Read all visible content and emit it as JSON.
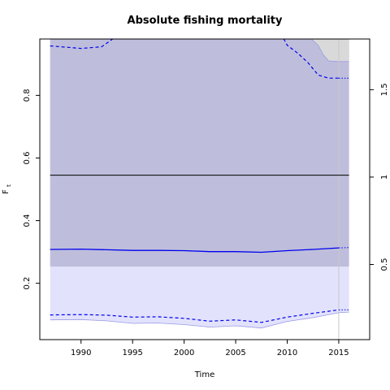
{
  "chart_data": {
    "type": "area",
    "title": "Absolute fishing mortality",
    "xlabel": "Time",
    "ylabel": "F",
    "ylabel_sub": "t",
    "xlim": [
      1986,
      2018
    ],
    "ylim": [
      0.02,
      0.98
    ],
    "y2lim": [
      0.07,
      1.79
    ],
    "x_ticks": [
      1990,
      1995,
      2000,
      2005,
      2010,
      2015
    ],
    "y_ticks": [
      0.2,
      0.4,
      0.6,
      0.8
    ],
    "y_tick_labels": [
      "0.2",
      "0.4",
      "0.6",
      "0.8"
    ],
    "y2_ticks": [
      0.5,
      1.0,
      1.5
    ],
    "y2_tick_labels": [
      "0.5",
      "1",
      "1.5"
    ],
    "grid": false,
    "colors": {
      "fmsy_band": "#bebedc",
      "ci_band": "#e2e2fd",
      "prediction_band": "#d9d9d9",
      "estimate_line": "#0000ee",
      "ci_line": "#0000ee",
      "ci_band_edge": "#9a9ae6",
      "reference_line": "#000000",
      "vline": "#c8c8c8"
    },
    "reference_line_y": 0.545,
    "fmsy_band": {
      "lower": 0.253,
      "upper": 0.98
    },
    "prediction_start": 2015,
    "vline_x": 2015,
    "estimate": {
      "x": [
        1987,
        1990,
        1992.5,
        1995,
        1997.5,
        2000,
        2002.5,
        2005,
        2007.5,
        2010,
        2012.5,
        2015
      ],
      "y": [
        0.308,
        0.309,
        0.307,
        0.305,
        0.305,
        0.304,
        0.301,
        0.301,
        0.299,
        0.304,
        0.308,
        0.313
      ]
    },
    "estimate_pred": {
      "x": [
        2015,
        2016
      ],
      "y": [
        0.313,
        0.314
      ]
    },
    "ci_lower": {
      "x": [
        1987,
        1990,
        1992.5,
        1995,
        1997.5,
        2000,
        2002.5,
        2005,
        2007.5,
        2010,
        2012.5,
        2015
      ],
      "y": [
        0.099,
        0.1,
        0.098,
        0.092,
        0.093,
        0.088,
        0.079,
        0.083,
        0.075,
        0.092,
        0.104,
        0.115
      ]
    },
    "ci_lower_pred": {
      "x": [
        2015,
        2016
      ],
      "y": [
        0.115,
        0.115
      ]
    },
    "ci_upper": {
      "x": [
        1987,
        1990,
        1992,
        1993.5,
        2009.5,
        2010,
        2011,
        2012,
        2013,
        2014,
        2015
      ],
      "y": [
        0.958,
        0.95,
        0.955,
        0.99,
        0.99,
        0.96,
        0.935,
        0.905,
        0.865,
        0.855,
        0.855
      ]
    },
    "ci_upper_pred": {
      "x": [
        2015,
        2016
      ],
      "y": [
        0.855,
        0.855
      ]
    },
    "band_lower_edge": {
      "x": [
        1987,
        1990,
        1992.5,
        1995,
        1997.5,
        2000,
        2002.5,
        2005,
        2007.5,
        2010,
        2012.5,
        2015,
        2016
      ],
      "y": [
        0.083,
        0.084,
        0.08,
        0.072,
        0.073,
        0.068,
        0.06,
        0.064,
        0.057,
        0.078,
        0.09,
        0.106,
        0.108
      ]
    },
    "pred_band_upper": {
      "x": [
        2012,
        2013,
        2013.5,
        2014,
        2015,
        2016
      ],
      "y": [
        0.99,
        0.96,
        0.93,
        0.91,
        0.908,
        0.908
      ]
    }
  }
}
